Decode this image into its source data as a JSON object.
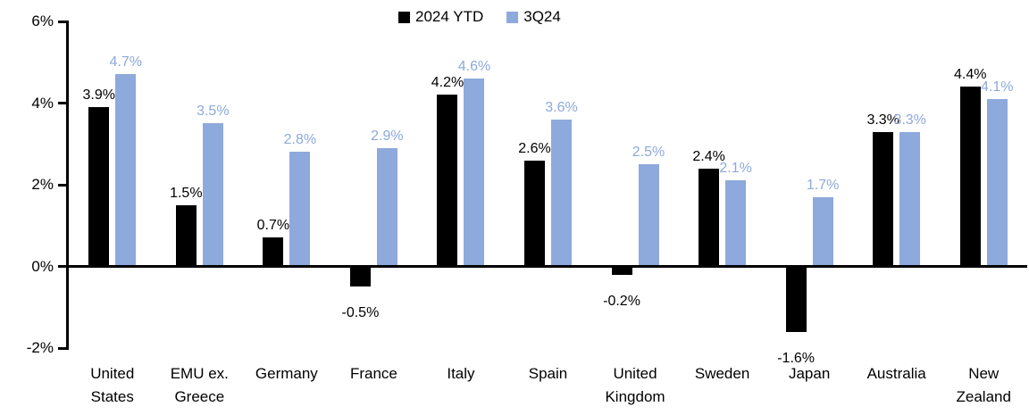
{
  "chart_data": {
    "type": "bar",
    "title": "",
    "xlabel": "",
    "ylabel": "",
    "grid": false,
    "legend_position": "top-center",
    "ylim": [
      -2,
      6
    ],
    "yticks": [
      {
        "value": 6,
        "label": "6%"
      },
      {
        "value": 4,
        "label": "4%"
      },
      {
        "value": 2,
        "label": "2%"
      },
      {
        "value": 0,
        "label": "0%"
      },
      {
        "value": -2,
        "label": "-2%"
      }
    ],
    "categories": [
      "United States",
      "EMU ex. Greece",
      "Germany",
      "France",
      "Italy",
      "Spain",
      "United Kingdom",
      "Sweden",
      "Japan",
      "Australia",
      "New Zealand"
    ],
    "series": [
      {
        "name": "2024 YTD",
        "color": "#000000",
        "values": [
          3.9,
          1.5,
          0.7,
          -0.5,
          4.2,
          2.6,
          -0.2,
          2.4,
          -1.6,
          3.3,
          4.4
        ],
        "labels": [
          "3.9%",
          "1.5%",
          "0.7%",
          "-0.5%",
          "4.2%",
          "2.6%",
          "-0.2%",
          "2.4%",
          "-1.6%",
          "3.3%",
          "4.4%"
        ]
      },
      {
        "name": "3Q24",
        "color": "#8EA9DB",
        "values": [
          4.7,
          3.5,
          2.8,
          2.9,
          4.6,
          3.6,
          2.5,
          2.1,
          1.7,
          3.3,
          4.1
        ],
        "labels": [
          "4.7%",
          "3.5%",
          "2.8%",
          "2.9%",
          "4.6%",
          "3.6%",
          "2.5%",
          "2.1%",
          "1.7%",
          "3.3%",
          "4.1%"
        ]
      }
    ]
  }
}
